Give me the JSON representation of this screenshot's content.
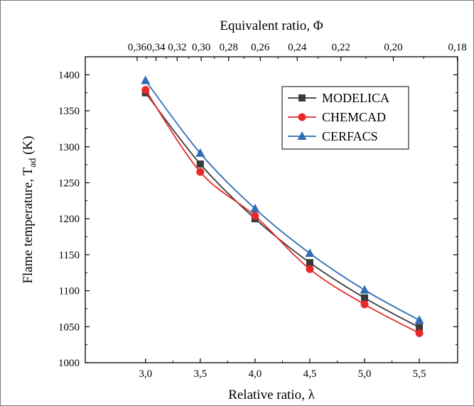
{
  "chart_data": {
    "type": "line",
    "x_title": "Relative ratio, λ",
    "x2_title": "Equivalent ratio, Φ",
    "y_title_main": "Flame temperature, T",
    "y_title_sub": "ad",
    "y_title_unit": " (K)",
    "xlim": [
      2.45,
      5.85
    ],
    "ylim": [
      1000,
      1425
    ],
    "x_ticks": [
      3.0,
      3.5,
      4.0,
      4.5,
      5.0,
      5.5
    ],
    "x_tick_labels": [
      "3,0",
      "3,5",
      "4,0",
      "4,5",
      "5,0",
      "5,5"
    ],
    "y_ticks": [
      1000,
      1050,
      1100,
      1150,
      1200,
      1250,
      1300,
      1350,
      1400
    ],
    "y_tick_labels": [
      "1000",
      "1050",
      "1100",
      "1150",
      "1200",
      "1250",
      "1300",
      "1350",
      "1400"
    ],
    "top_ticks": [
      0.36,
      0.34,
      0.32,
      0.3,
      0.28,
      0.26,
      0.24,
      0.22,
      0.2,
      0.18
    ],
    "top_tick_labels": [
      "0,36",
      "0,34",
      "0,32",
      "0,30",
      "0,28",
      "0,26",
      "0,24",
      "0,22",
      "0,20",
      "0,18"
    ],
    "x": [
      3.0,
      3.5,
      4.0,
      4.5,
      5.0,
      5.5
    ],
    "series": [
      {
        "name": "MODELICA",
        "color": "#3a3a3a",
        "marker": "square",
        "values": [
          1375,
          1276,
          1200,
          1139,
          1090,
          1049
        ]
      },
      {
        "name": "CHEMCAD",
        "color": "#e8292a",
        "marker": "circle",
        "values": [
          1379,
          1265,
          1204,
          1130,
          1081,
          1041
        ]
      },
      {
        "name": "CERFACS",
        "color": "#2f6db5",
        "marker": "triangle",
        "values": [
          1392,
          1291,
          1214,
          1152,
          1101,
          1059
        ]
      }
    ],
    "legend_position": "top-right",
    "grid": false
  }
}
